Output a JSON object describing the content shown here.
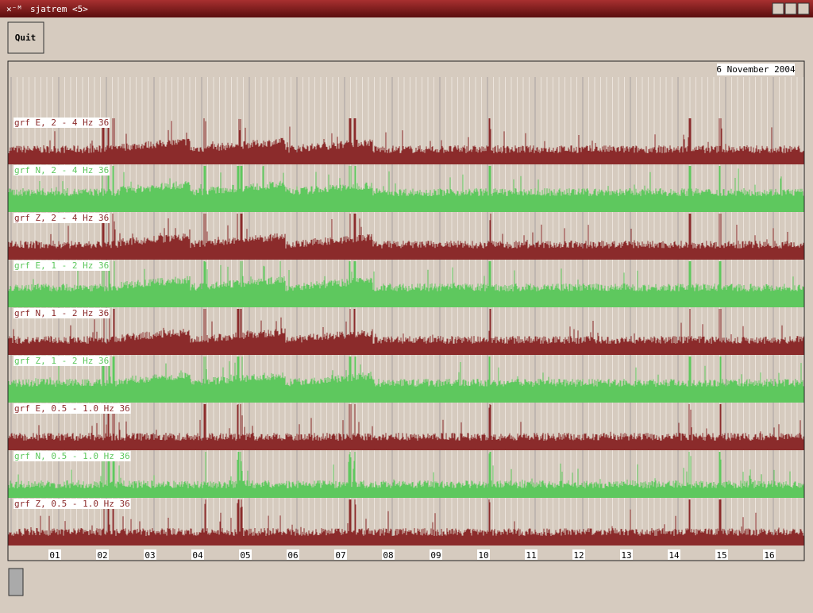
{
  "window": {
    "title": "sjatrem <5>"
  },
  "button": {
    "label": "Quit"
  },
  "plot": {
    "date": "6 November 2004",
    "traces": [
      {
        "label": "grf E, 2 - 4 Hz 36",
        "color": "#8b2b2b"
      },
      {
        "label": "grf N, 2 - 4 Hz 36",
        "color": "#5ec85e"
      },
      {
        "label": "grf Z, 2 - 4 Hz 36",
        "color": "#8b2b2b"
      },
      {
        "label": "grf E, 1 - 2 Hz 36",
        "color": "#5ec85e"
      },
      {
        "label": "grf N, 1 - 2 Hz 36",
        "color": "#8b2b2b"
      },
      {
        "label": "grf Z, 1 - 2 Hz 36",
        "color": "#5ec85e"
      },
      {
        "label": "grf E, 0.5 - 1.0 Hz 36",
        "color": "#8b2b2b"
      },
      {
        "label": "grf N, 0.5 - 1.0 Hz 36",
        "color": "#5ec85e"
      },
      {
        "label": "grf Z, 0.5 - 1.0 Hz 36",
        "color": "#8b2b2b"
      }
    ],
    "x_labels": [
      "01",
      "02",
      "03",
      "04",
      "05",
      "06",
      "07",
      "08",
      "09",
      "10",
      "11",
      "12",
      "13",
      "14",
      "15",
      "16"
    ]
  }
}
